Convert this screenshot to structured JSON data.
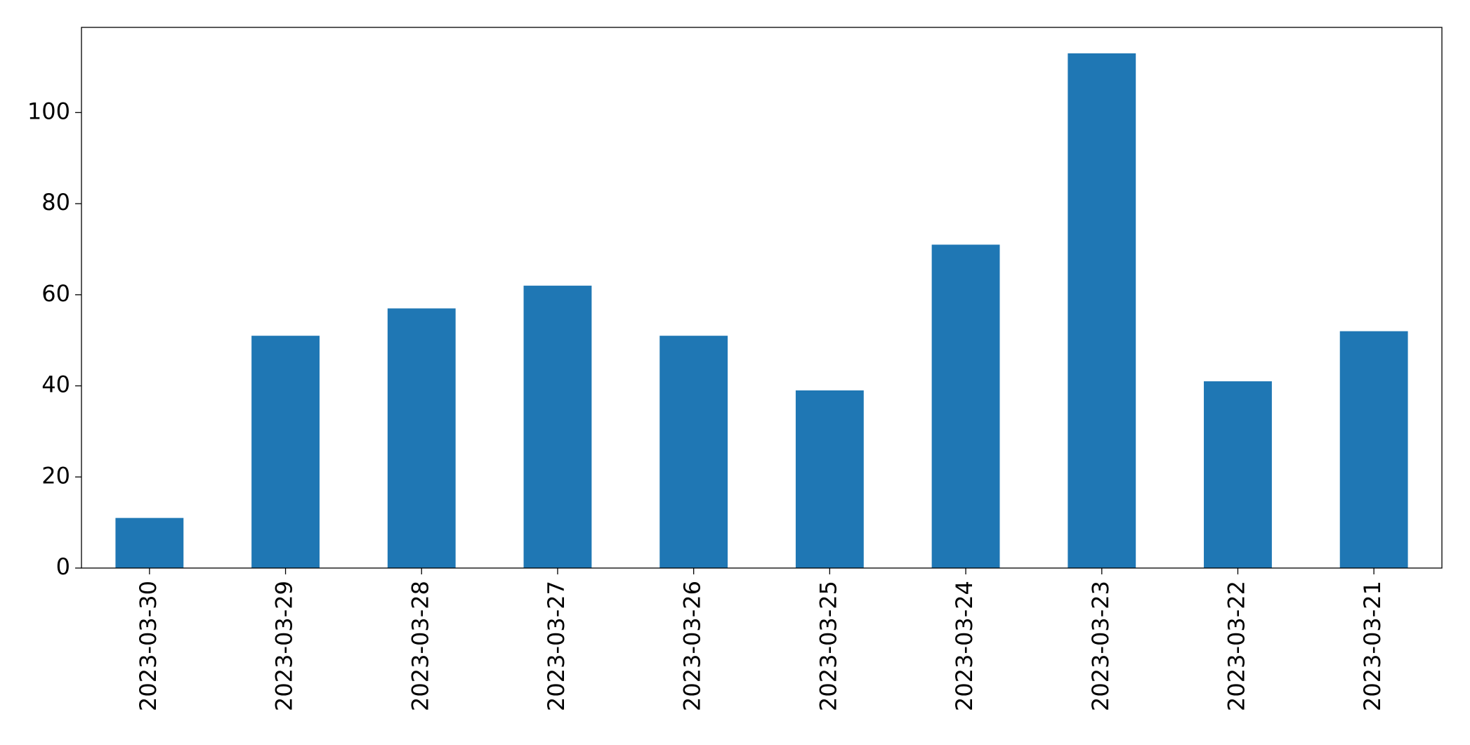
{
  "chart_data": {
    "type": "bar",
    "categories": [
      "2023-03-30",
      "2023-03-29",
      "2023-03-28",
      "2023-03-27",
      "2023-03-26",
      "2023-03-25",
      "2023-03-24",
      "2023-03-23",
      "2023-03-22",
      "2023-03-21"
    ],
    "values": [
      11,
      51,
      57,
      62,
      51,
      39,
      71,
      113,
      41,
      52
    ],
    "color": "#1f77b4",
    "ylim": [
      0,
      118.7
    ],
    "yticks": [
      0,
      20,
      40,
      60,
      80,
      100
    ],
    "grid": false
  }
}
